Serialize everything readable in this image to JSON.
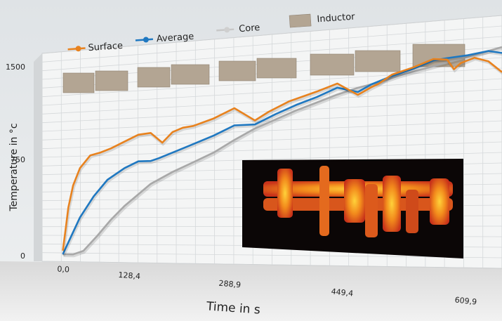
{
  "chart_data": {
    "type": "line",
    "xlabel": "Time in s",
    "ylabel": "Temperature in °c",
    "x_ticks": [
      "0,0",
      "128,4",
      "288,9",
      "449,4",
      "609,9"
    ],
    "y_ticks": [
      "0",
      "750",
      "1500"
    ],
    "xlim": [
      0,
      640
    ],
    "ylim": [
      0,
      1500
    ],
    "legend_position": "top",
    "grid": true,
    "series": [
      {
        "name": "Surface",
        "color": "#e8821e",
        "x": [
          0,
          4,
          8,
          15,
          25,
          40,
          55,
          70,
          90,
          110,
          128,
          145,
          160,
          175,
          190,
          220,
          250,
          280,
          300,
          330,
          370,
          400,
          430,
          450,
          460,
          480,
          510,
          540,
          560,
          570,
          580,
          600,
          620,
          640
        ],
        "y": [
          30,
          200,
          380,
          560,
          700,
          800,
          820,
          850,
          900,
          950,
          960,
          880,
          960,
          990,
          1000,
          1050,
          1120,
          1020,
          1080,
          1150,
          1210,
          1260,
          1170,
          1220,
          1240,
          1300,
          1340,
          1390,
          1380,
          1310,
          1350,
          1380,
          1350,
          1270
        ]
      },
      {
        "name": "Average",
        "color": "#1f78c1",
        "x": [
          0,
          10,
          25,
          45,
          65,
          90,
          110,
          128,
          140,
          160,
          185,
          220,
          250,
          280,
          310,
          340,
          370,
          400,
          430,
          450,
          480,
          510,
          540,
          560,
          590,
          620,
          640
        ],
        "y": [
          0,
          120,
          300,
          470,
          600,
          690,
          740,
          740,
          760,
          800,
          850,
          920,
          990,
          990,
          1060,
          1120,
          1170,
          1230,
          1190,
          1240,
          1290,
          1330,
          1380,
          1390,
          1400,
          1420,
          1400
        ]
      },
      {
        "name": "Core",
        "color": "#a8a8a8",
        "x": [
          0,
          15,
          30,
          50,
          70,
          90,
          110,
          128,
          160,
          190,
          220,
          250,
          280,
          310,
          340,
          370,
          400,
          430,
          460,
          490,
          520,
          560,
          600,
          640
        ],
        "y": [
          0,
          0,
          30,
          150,
          280,
          390,
          480,
          560,
          650,
          720,
          790,
          880,
          960,
          1020,
          1080,
          1130,
          1180,
          1220,
          1250,
          1290,
          1320,
          1360,
          1400,
          1440
        ]
      }
    ],
    "legend_extra": "Inductor"
  }
}
